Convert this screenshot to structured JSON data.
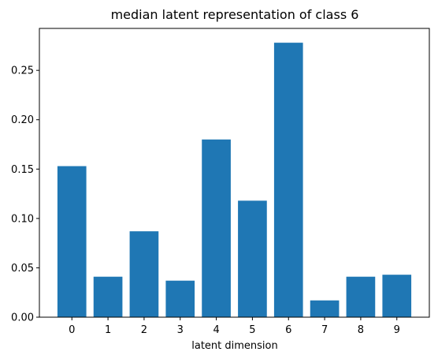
{
  "chart_data": {
    "type": "bar",
    "title": "median latent representation of class 6",
    "xlabel": "latent dimension",
    "ylabel": "",
    "categories": [
      "0",
      "1",
      "2",
      "3",
      "4",
      "5",
      "6",
      "7",
      "8",
      "9"
    ],
    "values": [
      0.153,
      0.041,
      0.087,
      0.037,
      0.18,
      0.118,
      0.278,
      0.017,
      0.041,
      0.043
    ],
    "ylim": [
      0,
      0.2925
    ],
    "yticks": [
      0.0,
      0.05,
      0.1,
      0.15,
      0.2,
      0.25
    ],
    "ytick_labels": [
      "0.00",
      "0.05",
      "0.10",
      "0.15",
      "0.20",
      "0.25"
    ],
    "grid": false,
    "bar_color": "#1f77b4"
  }
}
